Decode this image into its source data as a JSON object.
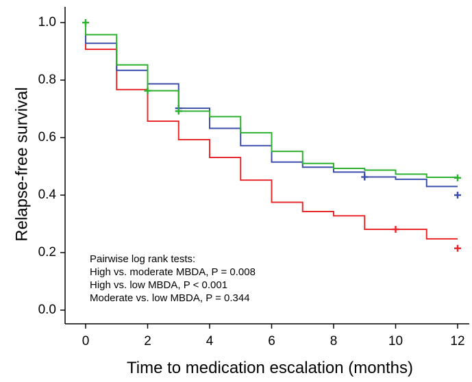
{
  "chart_data": {
    "type": "line",
    "step": true,
    "xlabel": "Time to medication escalation (months)",
    "ylabel": "Relapse-free survival",
    "xlim": [
      -0.7,
      13.0
    ],
    "ylim": [
      -0.05,
      1.05
    ],
    "x_ticks": [
      0,
      2,
      4,
      6,
      8,
      10,
      12
    ],
    "y_ticks": [
      0.0,
      0.2,
      0.4,
      0.6,
      0.8,
      1.0
    ],
    "y_tick_labels": [
      "0.0",
      "0.2",
      "0.4",
      "0.6",
      "0.8",
      "1.0"
    ],
    "grid": false,
    "annotations": [
      "Pairwise log rank tests:",
      "High vs. moderate MBDA, P = 0.008",
      "High vs. low MBDA, P < 0.001",
      "Moderate vs. low MBDA, P = 0.344"
    ],
    "series": [
      {
        "color": "#e8282b",
        "steps": [
          [
            0,
            1.0
          ],
          [
            0,
            0.907
          ],
          [
            1,
            0.767
          ],
          [
            2,
            0.657
          ],
          [
            3,
            0.593
          ],
          [
            4,
            0.531
          ],
          [
            5,
            0.452
          ],
          [
            6,
            0.375
          ],
          [
            7,
            0.343
          ],
          [
            8,
            0.328
          ],
          [
            9,
            0.281
          ],
          [
            11,
            0.248
          ],
          [
            12,
            0.248
          ]
        ],
        "censored": [
          [
            10,
            0.281
          ],
          [
            12,
            0.215
          ]
        ]
      },
      {
        "color": "#3a4dab",
        "steps": [
          [
            0,
            1.0
          ],
          [
            0,
            0.928
          ],
          [
            1,
            0.834
          ],
          [
            2,
            0.787
          ],
          [
            3,
            0.702
          ],
          [
            4,
            0.632
          ],
          [
            5,
            0.572
          ],
          [
            6,
            0.515
          ],
          [
            7,
            0.497
          ],
          [
            8,
            0.48
          ],
          [
            9,
            0.463
          ],
          [
            10,
            0.455
          ],
          [
            11,
            0.43
          ],
          [
            12,
            0.43
          ]
        ],
        "censored": [
          [
            3,
            0.702
          ],
          [
            9,
            0.463
          ],
          [
            12,
            0.4
          ]
        ]
      },
      {
        "color": "#2bb12e",
        "steps": [
          [
            0,
            1.0
          ],
          [
            0,
            0.958
          ],
          [
            1,
            0.853
          ],
          [
            2,
            0.763
          ],
          [
            3,
            0.692
          ],
          [
            4,
            0.673
          ],
          [
            5,
            0.617
          ],
          [
            6,
            0.552
          ],
          [
            7,
            0.51
          ],
          [
            8,
            0.493
          ],
          [
            9,
            0.487
          ],
          [
            10,
            0.473
          ],
          [
            11,
            0.462
          ],
          [
            12,
            0.462
          ]
        ],
        "censored": [
          [
            0,
            1.0
          ],
          [
            2,
            0.763
          ],
          [
            3,
            0.692
          ],
          [
            12,
            0.46
          ]
        ]
      }
    ]
  }
}
